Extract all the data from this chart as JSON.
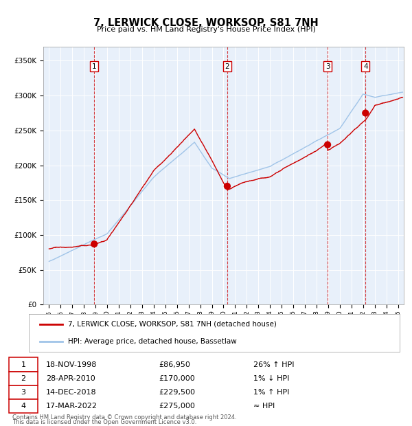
{
  "title": "7, LERWICK CLOSE, WORKSOP, S81 7NH",
  "subtitle": "Price paid vs. HM Land Registry's House Price Index (HPI)",
  "legend_line1": "7, LERWICK CLOSE, WORKSOP, S81 7NH (detached house)",
  "legend_line2": "HPI: Average price, detached house, Bassetlaw",
  "footer1": "Contains HM Land Registry data © Crown copyright and database right 2024.",
  "footer2": "This data is licensed under the Open Government Licence v3.0.",
  "hpi_color": "#a0c4e8",
  "price_color": "#cc0000",
  "plot_bg": "#e8f0fa",
  "ylim": [
    0,
    370000
  ],
  "yticks": [
    0,
    50000,
    100000,
    150000,
    200000,
    250000,
    300000,
    350000
  ],
  "ytick_labels": [
    "£0",
    "£50K",
    "£100K",
    "£150K",
    "£200K",
    "£250K",
    "£300K",
    "£350K"
  ],
  "sales": [
    {
      "num": "1",
      "date_str": "18-NOV-1998",
      "date_x": 1998.88,
      "price": 86950,
      "info": "26% ↑ HPI"
    },
    {
      "num": "2",
      "date_str": "28-APR-2010",
      "date_x": 2010.32,
      "price": 170000,
      "info": "1% ↓ HPI"
    },
    {
      "num": "3",
      "date_str": "14-DEC-2018",
      "date_x": 2018.95,
      "price": 229500,
      "info": "1% ↑ HPI"
    },
    {
      "num": "4",
      "date_str": "17-MAR-2022",
      "date_x": 2022.21,
      "price": 275000,
      "info": "≈ HPI"
    }
  ],
  "xlim": [
    1994.5,
    2025.5
  ],
  "xtick_years": [
    1995,
    1996,
    1997,
    1998,
    1999,
    2000,
    2001,
    2002,
    2003,
    2004,
    2005,
    2006,
    2007,
    2008,
    2009,
    2010,
    2011,
    2012,
    2013,
    2014,
    2015,
    2016,
    2017,
    2018,
    2019,
    2020,
    2021,
    2022,
    2023,
    2024,
    2025
  ],
  "table_rows": [
    [
      "1",
      "18-NOV-1998",
      "£86,950",
      "26% ↑ HPI"
    ],
    [
      "2",
      "28-APR-2010",
      "£170,000",
      "1% ↓ HPI"
    ],
    [
      "3",
      "14-DEC-2018",
      "£229,500",
      "1% ↑ HPI"
    ],
    [
      "4",
      "17-MAR-2022",
      "£275,000",
      "≈ HPI"
    ]
  ]
}
